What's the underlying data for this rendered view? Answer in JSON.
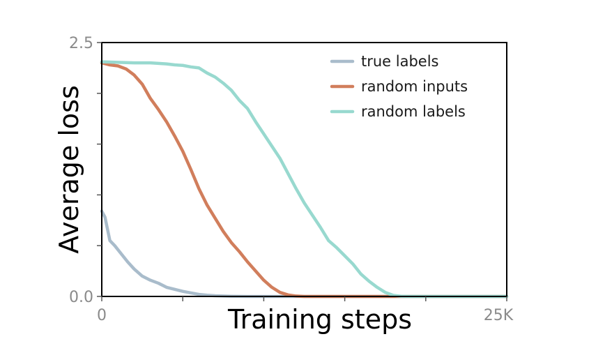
{
  "chart_data": {
    "type": "line",
    "title": "",
    "xlabel": "Training steps",
    "ylabel": "Average loss",
    "xlim": [
      0,
      25000
    ],
    "ylim": [
      0,
      2.5
    ],
    "x_tick_labels": [
      {
        "value": 0,
        "label": "0"
      },
      {
        "value": 25000,
        "label": "25K"
      }
    ],
    "x_minor_ticks": [
      5000,
      10000,
      15000,
      20000
    ],
    "y_tick_labels": [
      {
        "value": 0,
        "label": "0.0"
      },
      {
        "value": 2.5,
        "label": "2.5"
      }
    ],
    "y_minor_ticks": [
      0.5,
      1.0,
      1.5,
      2.0
    ],
    "grid": false,
    "legend_position": "top-right",
    "series": [
      {
        "name": "true labels",
        "color": "#a9bccb",
        "points": [
          [
            0,
            0.84
          ],
          [
            200,
            0.78
          ],
          [
            500,
            0.55
          ],
          [
            800,
            0.5
          ],
          [
            1200,
            0.42
          ],
          [
            1600,
            0.34
          ],
          [
            2000,
            0.27
          ],
          [
            2500,
            0.2
          ],
          [
            3000,
            0.16
          ],
          [
            3500,
            0.13
          ],
          [
            4000,
            0.09
          ],
          [
            4500,
            0.07
          ],
          [
            5000,
            0.05
          ],
          [
            5500,
            0.035
          ],
          [
            6000,
            0.02
          ],
          [
            6500,
            0.012
          ],
          [
            7000,
            0.007
          ],
          [
            7500,
            0.004
          ],
          [
            8000,
            0.002
          ],
          [
            9000,
            0.0
          ],
          [
            25000,
            0.0
          ]
        ]
      },
      {
        "name": "random inputs",
        "color": "#d17e5c",
        "points": [
          [
            0,
            2.3
          ],
          [
            500,
            2.28
          ],
          [
            1000,
            2.27
          ],
          [
            1500,
            2.24
          ],
          [
            2000,
            2.18
          ],
          [
            2500,
            2.09
          ],
          [
            3000,
            1.95
          ],
          [
            3500,
            1.84
          ],
          [
            4000,
            1.72
          ],
          [
            4500,
            1.58
          ],
          [
            5000,
            1.43
          ],
          [
            5500,
            1.25
          ],
          [
            6000,
            1.06
          ],
          [
            6500,
            0.9
          ],
          [
            7000,
            0.77
          ],
          [
            7500,
            0.64
          ],
          [
            8000,
            0.53
          ],
          [
            8500,
            0.44
          ],
          [
            9000,
            0.34
          ],
          [
            9500,
            0.25
          ],
          [
            10000,
            0.16
          ],
          [
            10500,
            0.09
          ],
          [
            11000,
            0.04
          ],
          [
            11500,
            0.015
          ],
          [
            12000,
            0.004
          ],
          [
            12500,
            0.0
          ],
          [
            25000,
            0.0
          ]
        ]
      },
      {
        "name": "random labels",
        "color": "#98d9cf",
        "points": [
          [
            0,
            2.31
          ],
          [
            1000,
            2.305
          ],
          [
            2000,
            2.3
          ],
          [
            2500,
            2.3
          ],
          [
            3000,
            2.3
          ],
          [
            3500,
            2.295
          ],
          [
            4000,
            2.29
          ],
          [
            4500,
            2.28
          ],
          [
            5000,
            2.275
          ],
          [
            5500,
            2.26
          ],
          [
            6000,
            2.25
          ],
          [
            6500,
            2.2
          ],
          [
            7000,
            2.16
          ],
          [
            7500,
            2.1
          ],
          [
            8000,
            2.03
          ],
          [
            8500,
            1.93
          ],
          [
            9000,
            1.85
          ],
          [
            9500,
            1.72
          ],
          [
            10000,
            1.6
          ],
          [
            10500,
            1.48
          ],
          [
            11000,
            1.36
          ],
          [
            11500,
            1.21
          ],
          [
            12000,
            1.06
          ],
          [
            12500,
            0.92
          ],
          [
            13000,
            0.8
          ],
          [
            13500,
            0.68
          ],
          [
            14000,
            0.55
          ],
          [
            14500,
            0.48
          ],
          [
            15000,
            0.4
          ],
          [
            15500,
            0.32
          ],
          [
            16000,
            0.22
          ],
          [
            16500,
            0.15
          ],
          [
            17000,
            0.09
          ],
          [
            17500,
            0.04
          ],
          [
            18000,
            0.01
          ],
          [
            18500,
            0.002
          ],
          [
            19000,
            0.0
          ],
          [
            25000,
            0.0
          ]
        ]
      }
    ]
  }
}
